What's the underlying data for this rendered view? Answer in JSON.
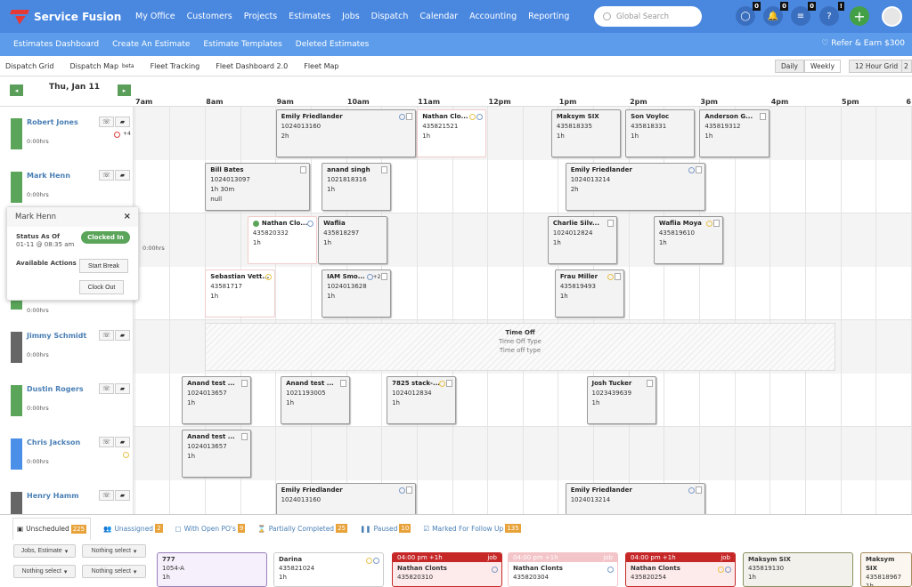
{
  "app": {
    "name": "Service Fusion",
    "brand_color": "#4a88e0",
    "accent_green": "#43a047"
  },
  "topnav": {
    "items": [
      "My Office",
      "Customers",
      "Projects",
      "Estimates",
      "Jobs",
      "Dispatch",
      "Calendar",
      "Accounting",
      "Reporting"
    ],
    "search_placeholder": "Global Search",
    "icons": [
      {
        "name": "chat-icon",
        "glyph": "◯",
        "count": "0"
      },
      {
        "name": "bell-icon",
        "glyph": "🔔",
        "count": "0"
      },
      {
        "name": "list-icon",
        "glyph": "≡",
        "count": "0"
      },
      {
        "name": "help-icon",
        "glyph": "?",
        "count": "!"
      }
    ],
    "add_label": "+"
  },
  "subnav": {
    "items": [
      "Estimates Dashboard",
      "Create An Estimate",
      "Estimate Templates",
      "Deleted Estimates"
    ],
    "refer": "♡ Refer & Earn $300"
  },
  "toolbar": {
    "items": [
      "Dispatch Grid",
      "Dispatch Map",
      "Fleet Tracking",
      "Fleet Dashboard 2.0",
      "Fleet Map"
    ],
    "beta": "beta",
    "view_daily": "Daily",
    "view_weekly": "Weekly",
    "grid_mode": "12 Hour Grid",
    "grid_extra": "2"
  },
  "schedule": {
    "date": "Thu, Jan 11",
    "prev": "◂",
    "next": "▸",
    "hours": [
      "7am",
      "8am",
      "9am",
      "10am",
      "11am",
      "12pm",
      "1pm",
      "2pm",
      "3pm",
      "4pm",
      "5pm",
      "6"
    ],
    "technicians": [
      {
        "name": "Robert Jones",
        "hours": "0:00hrs",
        "color": "#5aa55a",
        "extra": "+4",
        "status_dot": "red"
      },
      {
        "name": "Mark Henn",
        "hours": "0:00hrs",
        "color": "#5aa55a"
      },
      {
        "name": "",
        "hours": "0:00hrs",
        "color": "#5aa55a"
      },
      {
        "name": "",
        "hours": "0:00hrs",
        "color": "#5aa55a"
      },
      {
        "name": "Jimmy Schmidt",
        "hours": "0:00hrs",
        "color": "#666666"
      },
      {
        "name": "Dustin Rogers",
        "hours": "0:00hrs",
        "color": "#5aa55a"
      },
      {
        "name": "Chris Jackson",
        "hours": "0:00hrs",
        "color": "#4a8fe8",
        "status_dot": "yellow"
      },
      {
        "name": "Henry Hamm",
        "hours": "",
        "color": "#666666"
      }
    ],
    "jobs": [
      [
        {
          "title": "Emily Friedlander",
          "number": "1024013160",
          "duration": "2h",
          "dots": [
            "blue"
          ],
          "note": true
        },
        {
          "title": "Nathan Clo...",
          "number": "435821521",
          "duration": "1h",
          "dots": [
            "yellow",
            "blue"
          ],
          "pink": true
        },
        {
          "title": "Maksym SIX",
          "number": "435818335",
          "duration": "1h"
        },
        {
          "title": "Son Voyloc",
          "number": "435818331",
          "duration": "1h"
        },
        {
          "title": "Anderson G...",
          "number": "435819312",
          "duration": "1h",
          "note": true
        }
      ],
      [
        {
          "title": "Bill Bates",
          "number": "1024013097",
          "duration": "1h 30m",
          "extra": "null",
          "note": true
        },
        {
          "title": "anand singh",
          "number": "1021818316",
          "duration": "1h",
          "note": true
        },
        {
          "title": "Emily Friedlander",
          "number": "1024013214",
          "duration": "2h",
          "dots": [
            "blue"
          ],
          "note": true
        }
      ],
      [
        {
          "title": "Nathan Clo...",
          "number": "435820332",
          "duration": "1h",
          "dots": [
            "blue"
          ],
          "pink": true,
          "lead_dot": "green"
        },
        {
          "title": "Waflia",
          "number": "435818297",
          "duration": "1h"
        },
        {
          "title": "Charlie Silv...",
          "number": "1024012824",
          "duration": "1h",
          "note": true
        },
        {
          "title": "Waflia Moya",
          "number": "435819610",
          "duration": "1h",
          "dots": [
            "yellow"
          ],
          "note": true
        }
      ],
      [
        {
          "title": "Sebastian Vett...",
          "number": "43581717",
          "duration": "1h",
          "dots": [
            "yellow"
          ],
          "pink": true
        },
        {
          "title": "IAM Smo...",
          "number": "1024013628",
          "duration": "1h",
          "dots": [
            "blue"
          ],
          "more": "+2",
          "note": true
        },
        {
          "title": "Frau Miller",
          "number": "435819493",
          "duration": "1h",
          "dots": [
            "yellow"
          ],
          "note": true
        }
      ],
      [],
      [
        {
          "title": "Anand test ...",
          "number": "1024013657",
          "duration": "1h",
          "note": true
        },
        {
          "title": "Anand test ...",
          "number": "1021193005",
          "duration": "1h",
          "note": true
        },
        {
          "title": "7825 stack-...",
          "number": "1024012834",
          "duration": "1h",
          "dots": [
            "yellow"
          ],
          "note": true
        },
        {
          "title": "Josh Tucker",
          "number": "1023439639",
          "duration": "1h",
          "note": true
        }
      ],
      [
        {
          "title": "Anand test ...",
          "number": "1024013657",
          "duration": "1h",
          "note": true
        }
      ],
      [
        {
          "title": "Emily Friedlander",
          "number": "1024013160",
          "duration": "",
          "dots": [
            "blue"
          ],
          "note": true
        },
        {
          "title": "Emily Friedlander",
          "number": "1024013214",
          "duration": "",
          "dots": [
            "blue"
          ],
          "note": true
        }
      ]
    ],
    "time_off": {
      "title": "Time Off",
      "type_label": "Time Off Type",
      "type_value": "Time off type"
    }
  },
  "popup": {
    "name": "Mark Henn",
    "close": "×",
    "status_label": "Status As Of",
    "status_time": "01-11 @ 08:35 am",
    "status": "Clocked In",
    "actions_label": "Available Actions",
    "start_break": "Start Break",
    "clock_out": "Clock Out"
  },
  "bottom": {
    "tabs": [
      {
        "label": "Unscheduled",
        "count": "225"
      },
      {
        "label": "Unassigned",
        "count": "2"
      },
      {
        "label": "With Open PO's",
        "count": "9"
      },
      {
        "label": "Partially Completed",
        "count": "25"
      },
      {
        "label": "Paused",
        "count": "10"
      },
      {
        "label": "Marked For Follow Up",
        "count": "135"
      }
    ],
    "filters": [
      "Jobs, Estimate",
      "Nothing select",
      "Nothing select",
      "Nothing select"
    ],
    "cards": [
      {
        "title": "777",
        "number": "1054-A",
        "duration": "1h",
        "style": "purple"
      },
      {
        "title": "Darina",
        "number": "435821024",
        "duration": "1h",
        "dots": [
          "yellow",
          "blue"
        ],
        "style": "plain"
      },
      {
        "header": "04:00 pm +1h",
        "tag": "job",
        "title": "Nathan Clonts",
        "number": "435820310",
        "dots": [
          "blue"
        ],
        "style": "red"
      },
      {
        "header": "04:00 pm +1h",
        "tag": "job",
        "title": "Nathan Clonts",
        "number": "435820304",
        "dots": [
          "blue"
        ],
        "style": "faded"
      },
      {
        "header": "04:00 pm +1h",
        "tag": "job",
        "title": "Nathan Clonts",
        "number": "435820254",
        "dots": [
          "yellow",
          "blue"
        ],
        "style": "red"
      },
      {
        "title": "Maksym SIX",
        "number": "435819130",
        "duration": "1h",
        "style": "olive"
      },
      {
        "title": "Maksym SIX",
        "number": "435818967",
        "duration": "1h",
        "style": "brown"
      }
    ]
  }
}
